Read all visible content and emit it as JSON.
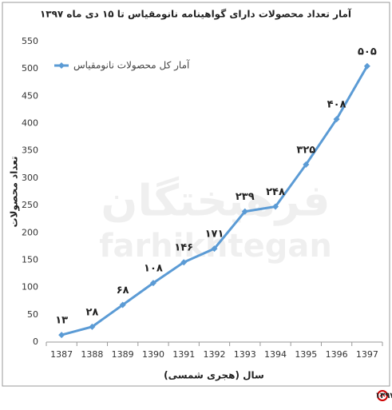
{
  "chart_data": {
    "type": "line",
    "title": "آمار تعداد محصولات دارای گواهینامه نانومقیاس تا ۱۵ دی ماه ۱۳۹۷",
    "y_label": "تعداد محصولات",
    "x_label": "سال (هجری شمسی)",
    "categories": [
      "1387",
      "1388",
      "1389",
      "1390",
      "1391",
      "1392",
      "1393",
      "1394",
      "1395",
      "1396",
      "1397"
    ],
    "series": [
      {
        "name": "آمار کل محصولات نانومقیاس",
        "color": "#5b9bd5",
        "values": [
          13,
          28,
          68,
          108,
          146,
          171,
          239,
          248,
          325,
          408,
          505
        ],
        "value_labels": [
          "۱۳",
          "۲۸",
          "۶۸",
          "۱۰۸",
          "۱۴۶",
          "۱۷۱",
          "۲۳۹",
          "۲۴۸",
          "۳۲۵",
          "۴۰۸",
          "۵۰۵"
        ]
      }
    ],
    "ylim": [
      0,
      550
    ],
    "yticks": [
      0,
      50,
      100,
      150,
      200,
      250,
      300,
      350,
      400,
      450,
      500,
      550
    ],
    "grid": false,
    "legend": "top-left",
    "watermark": [
      "فرهیختگان",
      "farhikhtegan"
    ]
  },
  "caption": "آمار تعداد محصولات دارای گواهینامه نانومقیاس تا دی ماه ۱۳۹۷"
}
